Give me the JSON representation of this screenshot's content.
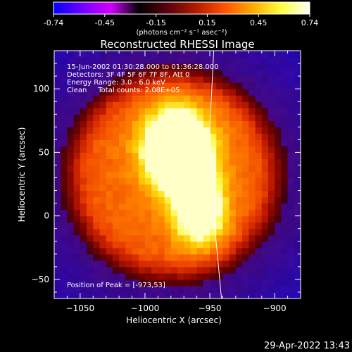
{
  "colorbar": {
    "ticks": [
      "-0.74",
      "-0.45",
      "-0.15",
      "0.15",
      "0.45",
      "0.74"
    ],
    "units": "(photons cm⁻² s⁻¹ asec⁻²)",
    "colors": [
      "#0000ff",
      "#6f00ff",
      "#d000ff",
      "#000000",
      "#5a0010",
      "#b01a00",
      "#ff5200",
      "#ffaa00",
      "#ffff40",
      "#ffffff"
    ]
  },
  "plot": {
    "title": "Reconstructed RHESSI Image",
    "info_lines": [
      "15-Jun-2002 01:30:28.000 to 01:36:28.000",
      "Detectors: 3F 4F 5F 6F 7F 8F, Att 0",
      "Energy Range: 3.0 - 6.0 keV",
      "Clean     Total counts: 2.08E+05"
    ],
    "peak_label": "Position of Peak = [-973,53]",
    "timestamp": "29-Apr-2022 13:43"
  },
  "chart_data": {
    "type": "heatmap",
    "title": "Reconstructed RHESSI Image",
    "xlabel": "Heliocentric X (arcsec)",
    "ylabel": "Heliocentric Y (arcsec)",
    "xlim": [
      -1070,
      -880
    ],
    "ylim": [
      -65,
      130
    ],
    "x_ticks": [
      -1050,
      -1000,
      -950,
      -900
    ],
    "y_ticks": [
      -50,
      0,
      50,
      100
    ],
    "value_range": [
      -0.74,
      0.74
    ],
    "peak": {
      "x": -973,
      "y": 53
    },
    "limb_line": [
      [
        -947,
        130
      ],
      [
        -950,
        70
      ],
      [
        -947,
        0
      ],
      [
        -941,
        -65
      ]
    ],
    "emission": {
      "center": [
        -978,
        32
      ],
      "radius": 78,
      "blobs": [
        {
          "x": -975,
          "y": 52,
          "sx": 18,
          "sy": 22,
          "amp": 0.74
        },
        {
          "x": -958,
          "y": 5,
          "sx": 14,
          "sy": 20,
          "amp": 0.5
        }
      ]
    }
  }
}
